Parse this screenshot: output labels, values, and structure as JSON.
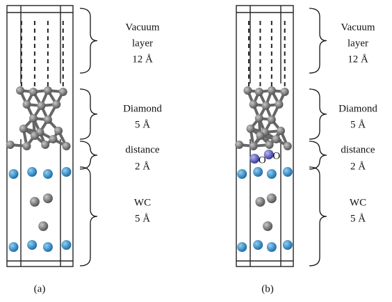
{
  "panels": [
    {
      "caption": "(a)",
      "regions": [
        {
          "lines": [
            "Vacuum",
            "layer",
            "12 Å"
          ]
        },
        {
          "lines": [
            "Diamond",
            "5 Å"
          ]
        },
        {
          "lines": [
            "distance",
            "2 Å"
          ]
        },
        {
          "lines": [
            "WC",
            "5 Å"
          ]
        }
      ]
    },
    {
      "caption": "(b)",
      "regions": [
        {
          "lines": [
            "Vacuum",
            "layer",
            "12 Å"
          ]
        },
        {
          "lines": [
            "Diamond",
            "5 Å"
          ]
        },
        {
          "lines": [
            "distance",
            "2 Å"
          ]
        },
        {
          "lines": [
            "WC",
            "5 Å"
          ]
        }
      ],
      "atom_labels": [
        "O",
        "O"
      ]
    }
  ]
}
